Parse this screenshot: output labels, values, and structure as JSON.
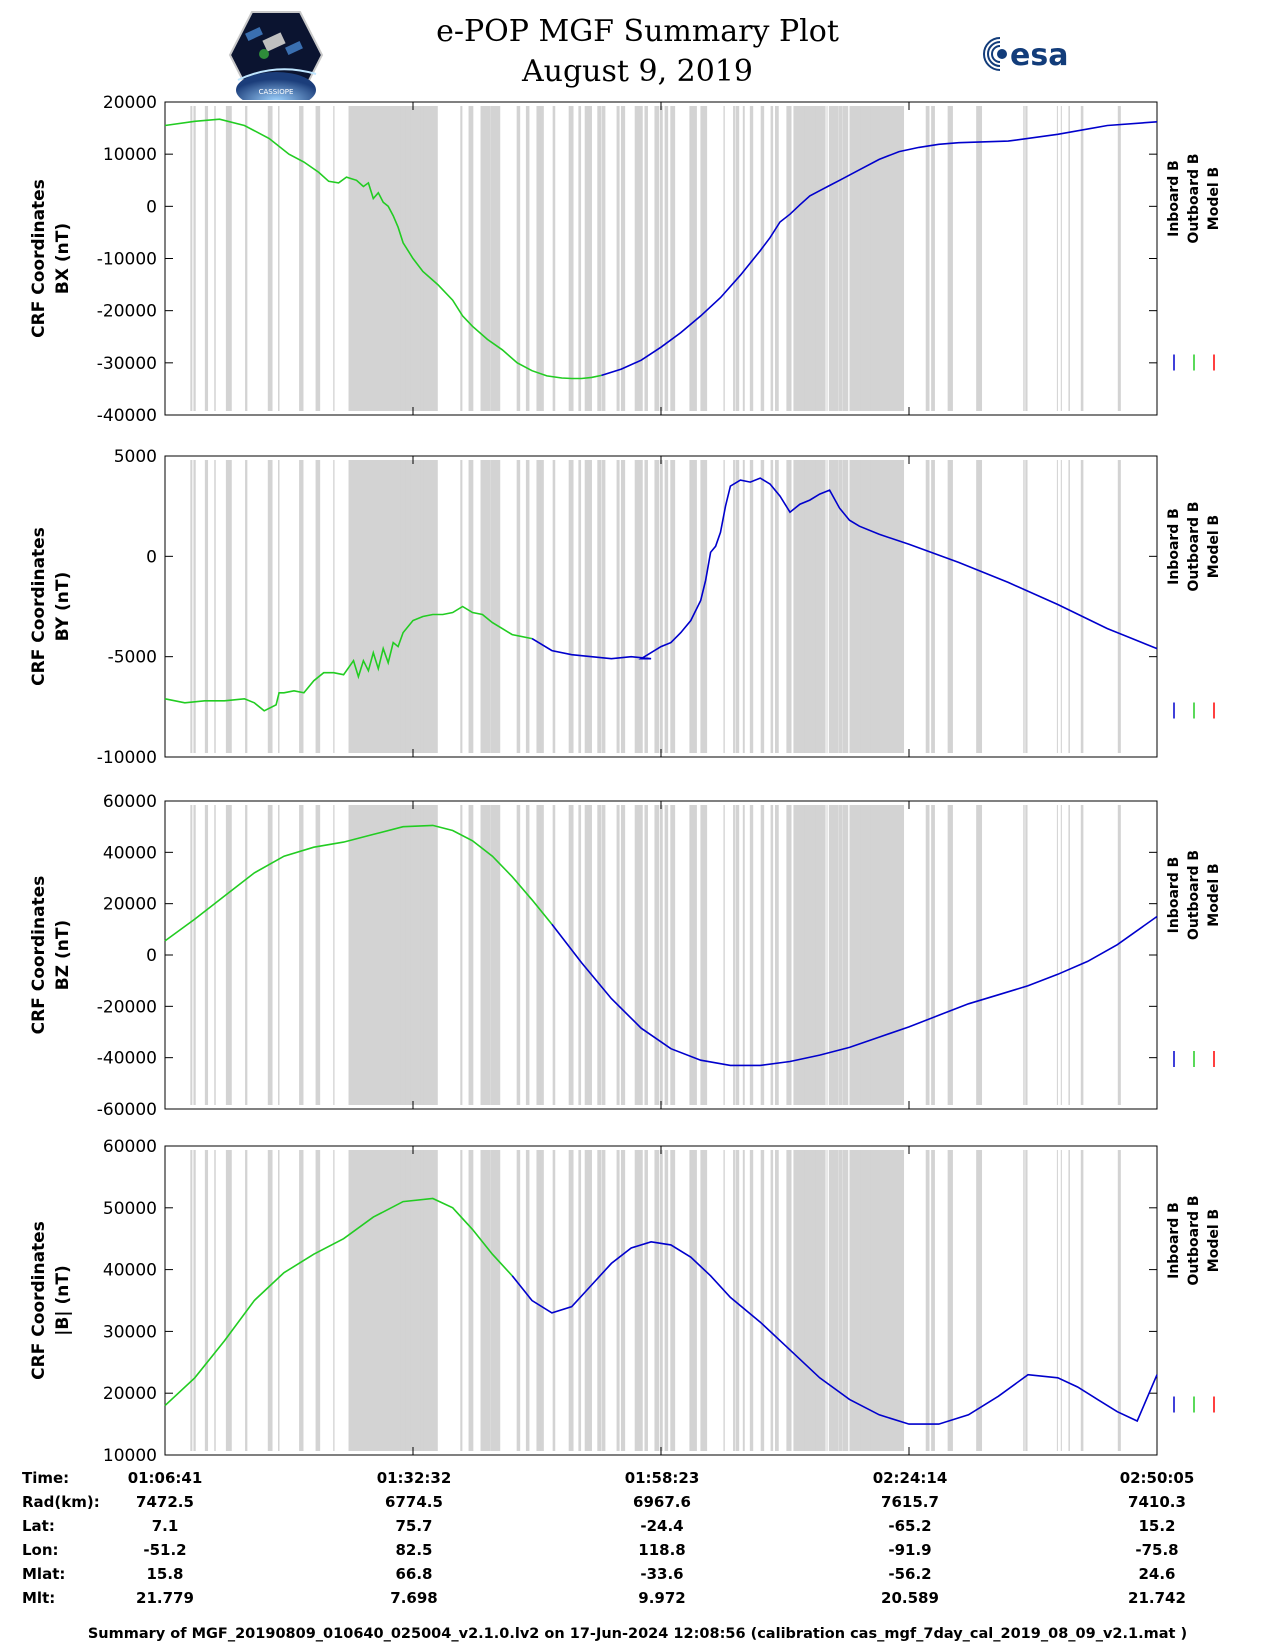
{
  "title_line1": "e-POP MGF Summary Plot",
  "title_line2": "August 9, 2019",
  "logos": {
    "left": "CASSIOPE",
    "right": "esa"
  },
  "colors": {
    "inboard": "#0000cc",
    "outboard": "#22cc22",
    "model": "#ff0000",
    "shade": "#d3d3d3"
  },
  "chart_data": [
    {
      "type": "line",
      "ylabel": "CRF Coordinates",
      "ylabel2": "BX (nT)",
      "ylim": [
        -40000,
        20000
      ],
      "yticks": [
        20000,
        10000,
        0,
        -10000,
        -20000,
        -30000,
        -40000
      ],
      "legend": [
        "Inboard B",
        "Outboard B",
        "Model B"
      ],
      "series": [
        {
          "name": "Outboard B",
          "color": "green",
          "x": [
            0,
            0.03,
            0.055,
            0.08,
            0.105,
            0.125,
            0.14,
            0.155,
            0.165,
            0.175,
            0.183,
            0.188,
            0.193,
            0.2,
            0.205,
            0.21,
            0.215,
            0.22,
            0.225,
            0.23,
            0.235,
            0.24,
            0.25,
            0.26,
            0.275,
            0.29,
            0.3,
            0.31,
            0.325,
            0.34,
            0.355,
            0.37,
            0.385,
            0.4,
            0.41,
            0.42,
            0.43,
            0.44
          ],
          "y": [
            15500,
            16300,
            16700,
            15500,
            13000,
            10000,
            8500,
            6500,
            4800,
            4500,
            5600,
            5300,
            5000,
            3800,
            4500,
            1500,
            2600,
            800,
            0,
            -1800,
            -4000,
            -7000,
            -10000,
            -12500,
            -15000,
            -18000,
            -21000,
            -23000,
            -25500,
            -27500,
            -30000,
            -31500,
            -32500,
            -32900,
            -33000,
            -33000,
            -32800,
            -32400
          ]
        },
        {
          "name": "Inboard B",
          "color": "blue",
          "x": [
            0.44,
            0.46,
            0.48,
            0.5,
            0.52,
            0.54,
            0.56,
            0.58,
            0.6,
            0.61,
            0.62,
            0.63,
            0.64,
            0.65,
            0.66,
            0.67,
            0.68,
            0.7,
            0.72,
            0.74,
            0.76,
            0.78,
            0.8,
            0.85,
            0.9,
            0.95,
            1.0
          ],
          "y": [
            -32400,
            -31200,
            -29500,
            -27000,
            -24200,
            -21000,
            -17500,
            -13200,
            -8500,
            -6000,
            -3000,
            -1500,
            300,
            2000,
            3000,
            4000,
            5000,
            7000,
            9000,
            10500,
            11300,
            11900,
            12200,
            12500,
            13800,
            15500,
            16200
          ]
        }
      ]
    },
    {
      "type": "line",
      "ylabel": "CRF Coordinates",
      "ylabel2": "BY (nT)",
      "ylim": [
        -10000,
        5000
      ],
      "yticks": [
        5000,
        0,
        -5000,
        -10000
      ],
      "legend": [
        "Inboard B",
        "Outboard B",
        "Model B"
      ],
      "series": [
        {
          "name": "Outboard B",
          "color": "green",
          "x": [
            0,
            0.02,
            0.04,
            0.06,
            0.08,
            0.09,
            0.1,
            0.112,
            0.115,
            0.12,
            0.13,
            0.14,
            0.15,
            0.16,
            0.17,
            0.18,
            0.19,
            0.195,
            0.2,
            0.205,
            0.21,
            0.215,
            0.22,
            0.225,
            0.23,
            0.235,
            0.24,
            0.25,
            0.26,
            0.27,
            0.28,
            0.29,
            0.3,
            0.31,
            0.32,
            0.33,
            0.34,
            0.35,
            0.37
          ],
          "y": [
            -7100,
            -7300,
            -7200,
            -7200,
            -7100,
            -7300,
            -7700,
            -7400,
            -6800,
            -6800,
            -6700,
            -6800,
            -6200,
            -5800,
            -5800,
            -5900,
            -5200,
            -6000,
            -5200,
            -5700,
            -4800,
            -5600,
            -4600,
            -5300,
            -4300,
            -4500,
            -3800,
            -3200,
            -3000,
            -2900,
            -2900,
            -2800,
            -2500,
            -2800,
            -2900,
            -3300,
            -3600,
            -3900,
            -4100
          ]
        },
        {
          "name": "Inboard B",
          "color": "blue",
          "x": [
            0.37,
            0.39,
            0.41,
            0.43,
            0.45,
            0.47,
            0.49,
            0.48,
            0.5,
            0.51,
            0.52,
            0.53,
            0.54,
            0.545,
            0.55,
            0.555,
            0.56,
            0.565,
            0.57,
            0.58,
            0.59,
            0.6,
            0.61,
            0.62,
            0.63,
            0.64,
            0.65,
            0.66,
            0.67,
            0.68,
            0.69,
            0.7,
            0.72,
            0.75,
            0.8,
            0.85,
            0.9,
            0.95,
            1.0
          ],
          "y": [
            -4100,
            -4700,
            -4900,
            -5000,
            -5100,
            -5000,
            -5100,
            -5100,
            -4500,
            -4300,
            -3800,
            -3200,
            -2200,
            -1200,
            200,
            500,
            1200,
            2500,
            3500,
            3800,
            3700,
            3900,
            3600,
            3000,
            2200,
            2600,
            2800,
            3100,
            3300,
            2400,
            1800,
            1500,
            1100,
            600,
            -300,
            -1300,
            -2400,
            -3600,
            -4600
          ]
        }
      ]
    },
    {
      "type": "line",
      "ylabel": "CRF Coordinates",
      "ylabel2": "BZ (nT)",
      "ylim": [
        -60000,
        60000
      ],
      "yticks": [
        60000,
        40000,
        20000,
        0,
        -20000,
        -40000,
        -60000
      ],
      "legend": [
        "Inboard B",
        "Outboard B",
        "Model B"
      ],
      "series": [
        {
          "name": "Outboard B",
          "color": "green",
          "x": [
            0,
            0.03,
            0.06,
            0.09,
            0.12,
            0.15,
            0.18,
            0.21,
            0.24,
            0.27,
            0.29,
            0.31,
            0.33,
            0.35,
            0.37,
            0.39
          ],
          "y": [
            5500,
            14000,
            23000,
            32000,
            38500,
            42000,
            44000,
            47000,
            50000,
            50500,
            48500,
            44500,
            38500,
            30500,
            21500,
            12000
          ]
        },
        {
          "name": "Inboard B",
          "color": "blue",
          "x": [
            0.39,
            0.42,
            0.45,
            0.48,
            0.51,
            0.54,
            0.57,
            0.6,
            0.63,
            0.66,
            0.69,
            0.72,
            0.75,
            0.78,
            0.81,
            0.84,
            0.87,
            0.9,
            0.93,
            0.96,
            1.0
          ],
          "y": [
            12000,
            -3000,
            -17000,
            -28500,
            -36500,
            -41000,
            -43000,
            -43000,
            -41500,
            -39000,
            -36000,
            -32000,
            -28000,
            -23500,
            -19000,
            -15500,
            -12000,
            -7500,
            -2500,
            4000,
            15000
          ]
        }
      ]
    },
    {
      "type": "line",
      "ylabel": "CRF Coordinates",
      "ylabel2": "|B| (nT)",
      "ylim": [
        10000,
        60000
      ],
      "yticks": [
        60000,
        50000,
        40000,
        30000,
        20000,
        10000
      ],
      "legend": [
        "Inboard B",
        "Outboard B",
        "Model B"
      ],
      "series": [
        {
          "name": "Outboard B",
          "color": "green",
          "x": [
            0,
            0.03,
            0.06,
            0.09,
            0.12,
            0.15,
            0.18,
            0.21,
            0.24,
            0.27,
            0.29,
            0.31,
            0.33,
            0.35
          ],
          "y": [
            18000,
            22500,
            28500,
            35000,
            39500,
            42500,
            45000,
            48500,
            51000,
            51500,
            50000,
            46500,
            42500,
            39000
          ]
        },
        {
          "name": "Inboard B",
          "color": "blue",
          "x": [
            0.35,
            0.37,
            0.39,
            0.41,
            0.43,
            0.45,
            0.47,
            0.49,
            0.51,
            0.53,
            0.55,
            0.57,
            0.6,
            0.63,
            0.66,
            0.69,
            0.72,
            0.75,
            0.78,
            0.81,
            0.84,
            0.87,
            0.9,
            0.92,
            0.94,
            0.96,
            0.98,
            1.0
          ],
          "y": [
            39000,
            35000,
            33000,
            34000,
            37500,
            41000,
            43500,
            44500,
            44000,
            42000,
            39000,
            35500,
            31500,
            27000,
            22500,
            19000,
            16500,
            15000,
            15000,
            16500,
            19500,
            23000,
            22500,
            21000,
            19000,
            17000,
            15500,
            23000
          ]
        }
      ]
    }
  ],
  "x_ticks": [
    "01:06:41",
    "01:32:32",
    "01:58:23",
    "02:24:14",
    "02:50:05"
  ],
  "info_table": {
    "labels": [
      "Time:",
      "Rad(km):",
      "Lat:",
      "Lon:",
      "Mlat:",
      "Mlt:"
    ],
    "columns": [
      [
        "01:06:41",
        "7472.5",
        "7.1",
        "-51.2",
        "15.8",
        "21.779"
      ],
      [
        "01:32:32",
        "6774.5",
        "75.7",
        "82.5",
        "66.8",
        "7.698"
      ],
      [
        "01:58:23",
        "6967.6",
        "-24.4",
        "118.8",
        "-33.6",
        "9.972"
      ],
      [
        "02:24:14",
        "7615.7",
        "-65.2",
        "-91.9",
        "-56.2",
        "20.589"
      ],
      [
        "02:50:05",
        "7410.3",
        "15.2",
        "-75.8",
        "24.6",
        "21.742"
      ]
    ]
  },
  "footer": "Summary of MGF_20190809_010640_025004_v2.1.0.lv2 on 17-Jun-2024 12:08:56 (calibration cas_mgf_7day_cal_2019_08_09_v2.1.mat )"
}
